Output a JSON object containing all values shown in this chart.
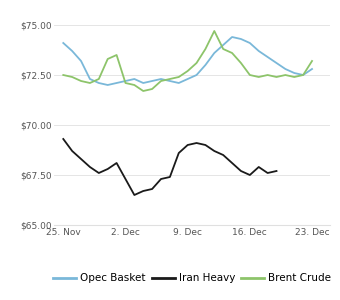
{
  "ylim": [
    65.0,
    75.8
  ],
  "yticks": [
    65.0,
    67.5,
    70.0,
    72.5,
    75.0
  ],
  "ytick_labels": [
    "$65.00",
    "$67.50",
    "$70.00",
    "$72.50",
    "$75.00"
  ],
  "xtick_labels": [
    "25. Nov",
    "2. Dec",
    "9. Dec",
    "16. Dec",
    "23. Dec"
  ],
  "xtick_positions": [
    0,
    7,
    14,
    21,
    28
  ],
  "xlim": [
    -1,
    30
  ],
  "opec_basket_x": [
    0,
    1,
    2,
    3,
    4,
    5,
    6,
    7,
    8,
    9,
    10,
    11,
    12,
    13,
    14,
    15,
    16,
    17,
    18,
    19,
    20,
    21,
    22,
    23,
    24,
    25,
    26,
    27,
    28
  ],
  "opec_basket_y": [
    74.1,
    73.7,
    73.2,
    72.3,
    72.1,
    72.0,
    72.1,
    72.2,
    72.3,
    72.1,
    72.2,
    72.3,
    72.2,
    72.1,
    72.3,
    72.5,
    73.0,
    73.6,
    74.0,
    74.4,
    74.3,
    74.1,
    73.7,
    73.4,
    73.1,
    72.8,
    72.6,
    72.5,
    72.8
  ],
  "iran_heavy_x": [
    0,
    1,
    2,
    3,
    4,
    5,
    6,
    7,
    8,
    9,
    10,
    11,
    12,
    13,
    14,
    15,
    16,
    17,
    18,
    19,
    20,
    21,
    22,
    23,
    24
  ],
  "iran_heavy_y": [
    69.3,
    68.7,
    68.3,
    67.9,
    67.6,
    67.8,
    68.1,
    67.3,
    66.5,
    66.7,
    66.8,
    67.3,
    67.4,
    68.6,
    69.0,
    69.1,
    69.0,
    68.7,
    68.5,
    68.1,
    67.7,
    67.5,
    67.9,
    67.6,
    67.7
  ],
  "brent_crude_x": [
    0,
    1,
    2,
    3,
    4,
    5,
    6,
    7,
    8,
    9,
    10,
    11,
    12,
    13,
    14,
    15,
    16,
    17,
    18,
    19,
    20,
    21,
    22,
    23,
    24,
    25,
    26,
    27,
    28
  ],
  "brent_crude_y": [
    72.5,
    72.4,
    72.2,
    72.1,
    72.3,
    73.3,
    73.5,
    72.1,
    72.0,
    71.7,
    71.8,
    72.2,
    72.3,
    72.4,
    72.7,
    73.1,
    73.8,
    74.7,
    73.8,
    73.6,
    73.1,
    72.5,
    72.4,
    72.5,
    72.4,
    72.5,
    72.4,
    72.5,
    73.2
  ],
  "opec_color": "#7ab8d9",
  "iran_color": "#1a1a1a",
  "brent_color": "#8dc46a",
  "background_color": "#ffffff",
  "grid_color": "#e0e0e0",
  "legend_labels": [
    "Opec Basket",
    "Iran Heavy",
    "Brent Crude"
  ]
}
